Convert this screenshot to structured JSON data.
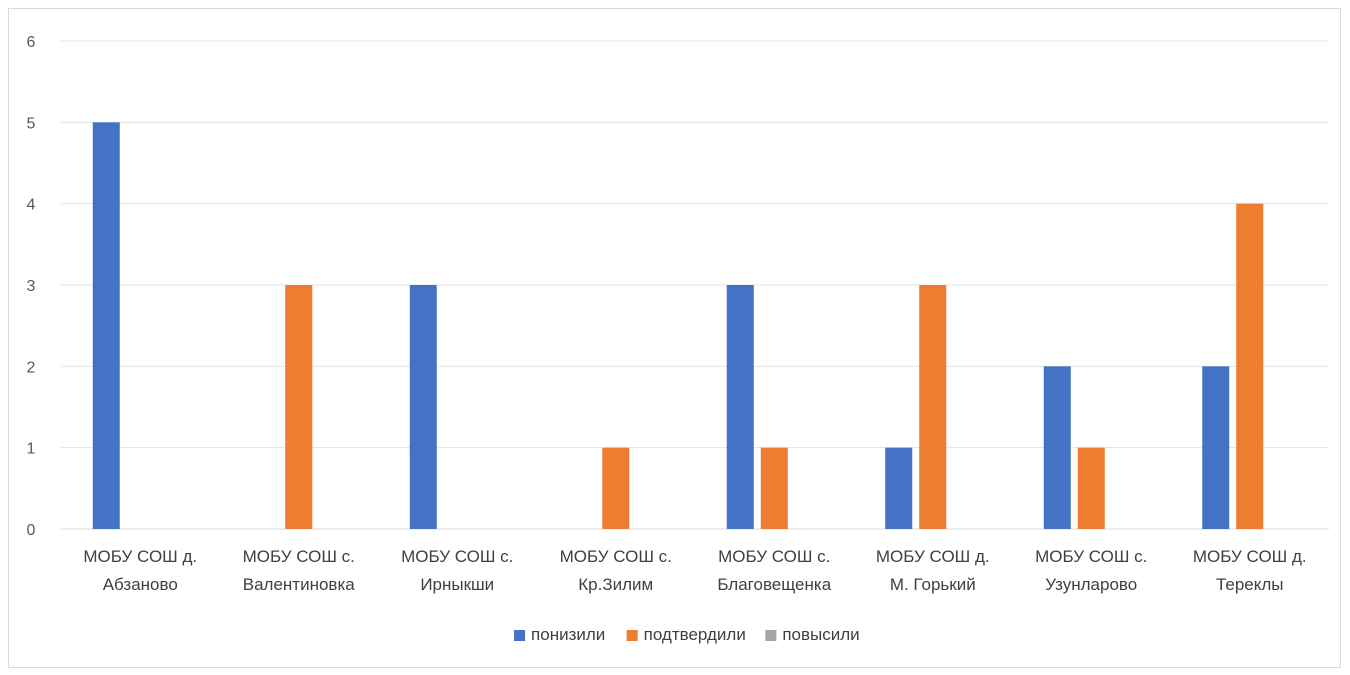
{
  "chart_data": {
    "type": "bar",
    "categories": [
      [
        "МОБУ СОШ д.",
        "Абзаново"
      ],
      [
        "МОБУ СОШ с.",
        "Валентиновка"
      ],
      [
        "МОБУ СОШ с.",
        "Ирныкши"
      ],
      [
        "МОБУ СОШ с.",
        "Кр.Зилим"
      ],
      [
        "МОБУ СОШ с.",
        "Благовещенка"
      ],
      [
        "МОБУ СОШ д.",
        "М. Горький"
      ],
      [
        "МОБУ СОШ с.",
        "Узунларово"
      ],
      [
        "МОБУ СОШ д.",
        "Тереклы"
      ]
    ],
    "series": [
      {
        "name": "понизили",
        "color": "#4472c4",
        "values": [
          5,
          0,
          3,
          0,
          3,
          1,
          2,
          2
        ]
      },
      {
        "name": "подтвердили",
        "color": "#ed7d31",
        "values": [
          0,
          3,
          0,
          1,
          1,
          3,
          1,
          4
        ]
      },
      {
        "name": "повысили",
        "color": "#a5a5a5",
        "values": [
          0,
          0,
          0,
          0,
          0,
          0,
          0,
          0
        ]
      }
    ],
    "yticks": [
      "0",
      "1",
      "2",
      "3",
      "4",
      "5",
      "6"
    ],
    "ylim": [
      0,
      6
    ],
    "grid": true,
    "legend": "bottom"
  }
}
